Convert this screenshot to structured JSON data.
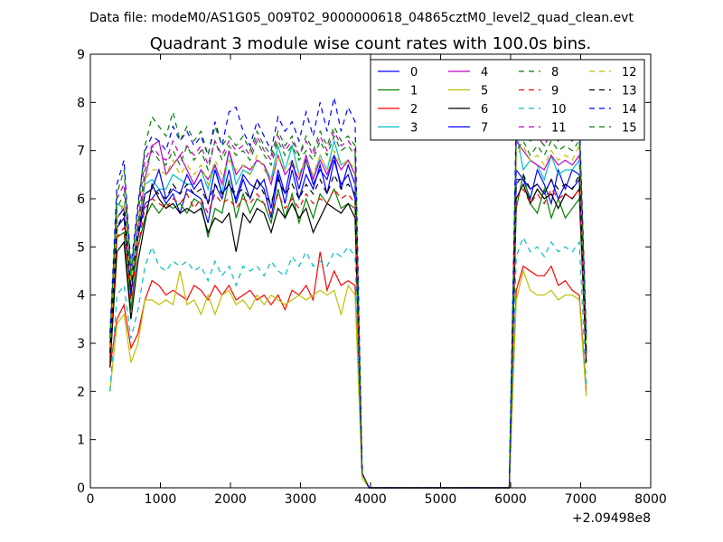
{
  "figure": {
    "suptitle": "Data file: modeM0/AS1G05_009T02_9000000618_04865cztM0_level2_quad_clean.evt",
    "title": "Quadrant 3 module wise count rates with 100.0s bins.",
    "x_offset_label": "+2.09498e8"
  },
  "chart_data": {
    "type": "line",
    "title": "Quadrant 3 module wise count rates with 100.0s bins.",
    "xlabel": "",
    "ylabel": "",
    "xlim": [
      0,
      8000
    ],
    "ylim": [
      0,
      9
    ],
    "x_ticks": [
      0,
      1000,
      2000,
      3000,
      4000,
      5000,
      6000,
      7000,
      8000
    ],
    "y_ticks": [
      0,
      1,
      2,
      3,
      4,
      5,
      6,
      7,
      8,
      9
    ],
    "x_offset": 209498000,
    "grid": false,
    "legend_location": "top-right",
    "legend_columns": 4,
    "x": [
      280,
      380,
      480,
      580,
      680,
      780,
      880,
      980,
      1080,
      1180,
      1280,
      1380,
      1480,
      1580,
      1680,
      1780,
      1880,
      1980,
      2080,
      2180,
      2280,
      2380,
      2480,
      2580,
      2680,
      2780,
      2880,
      2980,
      3080,
      3180,
      3280,
      3380,
      3480,
      3580,
      3680,
      3780,
      3880,
      3980,
      4080,
      4180,
      4280,
      4380,
      4480,
      4580,
      4680,
      4780,
      4880,
      4980,
      5080,
      5180,
      5280,
      5380,
      5480,
      5580,
      5680,
      5780,
      5880,
      5980,
      6080,
      6180,
      6280,
      6380,
      6480,
      6580,
      6680,
      6780,
      6880,
      6980,
      7080
    ],
    "series": [
      {
        "name": "0",
        "color": "#0000ff",
        "dash": "solid",
        "values": [
          2.9,
          5.4,
          5.6,
          4.2,
          5.2,
          5.9,
          6.0,
          6.2,
          5.9,
          6.1,
          5.7,
          6.2,
          6.1,
          6.0,
          5.5,
          6.3,
          6.0,
          6.6,
          5.9,
          6.4,
          6.0,
          6.4,
          6.2,
          5.6,
          6.5,
          5.9,
          6.6,
          6.0,
          6.5,
          6.2,
          6.7,
          6.1,
          6.8,
          6.3,
          6.5,
          6.0,
          0.3,
          0,
          0,
          0,
          0,
          0,
          0,
          0,
          0,
          0,
          0,
          0,
          0,
          0,
          0,
          0,
          0,
          0,
          0,
          0,
          0,
          0,
          6.4,
          6.4,
          6.0,
          6.6,
          6.3,
          5.9,
          6.6,
          6.2,
          6.6,
          6.5,
          2.9
        ]
      },
      {
        "name": "1",
        "color": "#008000",
        "dash": "solid",
        "values": [
          2.6,
          5.2,
          5.3,
          3.7,
          5.0,
          5.6,
          5.9,
          5.7,
          5.9,
          5.8,
          5.9,
          5.7,
          6.0,
          5.9,
          5.2,
          5.8,
          5.7,
          6.4,
          5.6,
          6.1,
          5.7,
          6.0,
          5.9,
          5.5,
          6.2,
          5.6,
          6.1,
          5.5,
          6.0,
          5.6,
          6.1,
          5.9,
          6.2,
          5.8,
          5.9,
          5.8,
          0.3,
          0,
          0,
          0,
          0,
          0,
          0,
          0,
          0,
          0,
          0,
          0,
          0,
          0,
          0,
          0,
          0,
          0,
          0,
          0,
          0,
          0,
          5.8,
          6.5,
          5.9,
          5.7,
          6.2,
          5.6,
          6.0,
          5.6,
          5.8,
          6.0,
          2.6
        ]
      },
      {
        "name": "2",
        "color": "#ff0000",
        "dash": "solid",
        "values": [
          2.5,
          3.5,
          3.8,
          2.9,
          3.2,
          3.9,
          4.3,
          4.2,
          4.0,
          4.1,
          4.0,
          3.9,
          4.2,
          4.1,
          3.9,
          4.2,
          4.0,
          4.2,
          3.9,
          4.0,
          4.1,
          3.9,
          4.0,
          3.8,
          4.0,
          3.7,
          4.1,
          4.0,
          4.2,
          3.9,
          4.9,
          4.1,
          4.5,
          4.2,
          4.3,
          4.2,
          0.3,
          0,
          0,
          0,
          0,
          0,
          0,
          0,
          0,
          0,
          0,
          0,
          0,
          0,
          0,
          0,
          0,
          0,
          0,
          0,
          0,
          0,
          4.1,
          4.6,
          4.5,
          4.4,
          4.4,
          4.6,
          4.2,
          4.3,
          4.1,
          4.0,
          2.0
        ]
      },
      {
        "name": "3",
        "color": "#00bfbf",
        "dash": "solid",
        "values": [
          2.9,
          5.9,
          5.8,
          4.4,
          5.4,
          6.3,
          6.4,
          6.2,
          6.2,
          6.5,
          6.4,
          6.3,
          6.3,
          6.6,
          6.2,
          6.7,
          6.1,
          7.0,
          6.3,
          6.6,
          6.5,
          6.8,
          6.7,
          6.4,
          7.1,
          6.6,
          7.1,
          6.5,
          6.8,
          6.4,
          6.9,
          6.6,
          7.2,
          6.7,
          6.8,
          6.5,
          0.3,
          0,
          0,
          0,
          0,
          0,
          0,
          0,
          0,
          0,
          0,
          0,
          0,
          0,
          0,
          0,
          0,
          0,
          0,
          0,
          0,
          0,
          7.4,
          6.6,
          6.8,
          6.7,
          6.4,
          6.9,
          6.5,
          6.6,
          6.6,
          6.8,
          2.9
        ]
      },
      {
        "name": "4",
        "color": "#bf00bf",
        "dash": "solid",
        "values": [
          2.8,
          5.6,
          5.8,
          4.1,
          5.4,
          6.4,
          7.1,
          7.2,
          6.5,
          6.7,
          6.9,
          6.6,
          6.3,
          6.6,
          6.4,
          6.7,
          6.3,
          7.0,
          6.5,
          6.7,
          6.6,
          6.8,
          6.7,
          6.3,
          6.9,
          6.5,
          6.7,
          6.4,
          6.9,
          6.4,
          6.8,
          6.5,
          6.9,
          6.6,
          6.8,
          6.5,
          0.3,
          0,
          0,
          0,
          0,
          0,
          0,
          0,
          0,
          0,
          0,
          0,
          0,
          0,
          0,
          0,
          0,
          0,
          0,
          0,
          0,
          0,
          7.2,
          7.0,
          6.8,
          6.7,
          6.6,
          6.9,
          6.7,
          6.8,
          6.7,
          6.9,
          2.8
        ]
      },
      {
        "name": "5",
        "color": "#bfbf00",
        "dash": "solid",
        "values": [
          2.0,
          3.4,
          3.6,
          2.6,
          3.0,
          3.9,
          3.9,
          3.8,
          3.9,
          3.8,
          4.5,
          3.8,
          3.9,
          3.6,
          4.0,
          3.6,
          4.0,
          4.1,
          3.8,
          3.9,
          3.7,
          4.0,
          3.8,
          4.0,
          3.9,
          3.8,
          3.9,
          4.0,
          3.9,
          4.0,
          4.1,
          4.0,
          4.1,
          3.6,
          4.2,
          4.0,
          0.2,
          0,
          0,
          0,
          0,
          0,
          0,
          0,
          0,
          0,
          0,
          0,
          0,
          0,
          0,
          0,
          0,
          0,
          0,
          0,
          0,
          0,
          3.9,
          4.5,
          4.1,
          4.0,
          4.0,
          4.1,
          3.9,
          4.0,
          4.0,
          3.9,
          1.9
        ]
      },
      {
        "name": "6",
        "color": "#000000",
        "dash": "solid",
        "values": [
          2.5,
          4.9,
          5.1,
          3.5,
          4.7,
          5.5,
          6.3,
          6.0,
          5.8,
          5.9,
          5.7,
          5.8,
          5.7,
          5.8,
          5.3,
          5.6,
          5.5,
          5.7,
          4.9,
          5.7,
          5.5,
          5.8,
          5.7,
          5.3,
          5.8,
          5.6,
          5.9,
          5.6,
          5.8,
          5.3,
          5.6,
          5.9,
          5.8,
          5.7,
          5.9,
          5.6,
          0.3,
          0,
          0,
          0,
          0,
          0,
          0,
          0,
          0,
          0,
          0,
          0,
          0,
          0,
          0,
          0,
          0,
          0,
          0,
          0,
          0,
          0,
          6.0,
          6.3,
          5.9,
          6.2,
          6.0,
          6.1,
          5.8,
          6.1,
          6.0,
          6.2,
          2.6
        ]
      },
      {
        "name": "7",
        "color": "#0000ff",
        "dash": "solid",
        "values": [
          2.9,
          5.6,
          5.8,
          4.0,
          5.3,
          6.1,
          6.2,
          6.6,
          6.0,
          6.2,
          6.1,
          6.5,
          6.2,
          6.4,
          5.9,
          6.6,
          6.1,
          6.3,
          6.0,
          6.5,
          6.3,
          6.2,
          6.4,
          5.8,
          6.6,
          6.1,
          6.8,
          6.2,
          6.8,
          6.3,
          6.6,
          6.4,
          6.9,
          6.2,
          6.7,
          6.3,
          0.3,
          0,
          0,
          0,
          0,
          0,
          0,
          0,
          0,
          0,
          0,
          0,
          0,
          0,
          0,
          0,
          0,
          0,
          0,
          0,
          0,
          0,
          6.6,
          6.4,
          6.2,
          6.3,
          6.1,
          6.4,
          6.0,
          6.3,
          6.2,
          6.4,
          2.8
        ]
      },
      {
        "name": "8",
        "color": "#008000",
        "dash": "dashed",
        "values": [
          3.0,
          5.8,
          6.1,
          4.3,
          5.5,
          6.6,
          7.0,
          6.8,
          6.7,
          7.0,
          6.7,
          7.1,
          6.8,
          7.0,
          6.6,
          7.2,
          6.8,
          7.1,
          6.9,
          7.0,
          6.8,
          7.2,
          6.9,
          6.7,
          7.2,
          6.9,
          7.1,
          6.8,
          7.0,
          6.8,
          7.2,
          6.9,
          7.3,
          7.0,
          7.1,
          6.9,
          0.3,
          0,
          0,
          0,
          0,
          0,
          0,
          0,
          0,
          0,
          0,
          0,
          0,
          0,
          0,
          0,
          0,
          0,
          0,
          0,
          0,
          0,
          7.0,
          7.2,
          6.9,
          7.1,
          6.9,
          7.2,
          7.0,
          7.1,
          7.0,
          7.2,
          3.0
        ]
      },
      {
        "name": "9",
        "color": "#ff0000",
        "dash": "dashed",
        "values": [
          2.7,
          5.2,
          5.4,
          3.9,
          5.0,
          5.8,
          6.0,
          5.9,
          5.8,
          6.0,
          5.9,
          6.1,
          5.8,
          6.0,
          5.7,
          6.1,
          5.9,
          6.0,
          5.8,
          6.0,
          5.9,
          6.1,
          5.9,
          5.7,
          6.1,
          5.8,
          6.0,
          5.8,
          6.1,
          5.9,
          6.0,
          5.9,
          6.2,
          6.0,
          6.1,
          5.9,
          0.3,
          0,
          0,
          0,
          0,
          0,
          0,
          0,
          0,
          0,
          0,
          0,
          0,
          0,
          0,
          0,
          0,
          0,
          0,
          0,
          0,
          0,
          6.0,
          6.2,
          5.9,
          6.1,
          5.9,
          6.2,
          6.0,
          6.1,
          6.0,
          6.2,
          2.7
        ]
      },
      {
        "name": "10",
        "color": "#00bfbf",
        "dash": "dashed",
        "values": [
          2.0,
          4.0,
          4.2,
          3.1,
          3.7,
          4.6,
          5.0,
          4.6,
          4.5,
          4.7,
          4.6,
          4.7,
          4.5,
          4.6,
          4.3,
          4.7,
          4.4,
          4.6,
          4.2,
          4.6,
          4.5,
          4.6,
          4.4,
          4.7,
          4.5,
          4.4,
          4.8,
          4.6,
          4.9,
          4.6,
          4.7,
          4.6,
          4.9,
          4.8,
          5.0,
          4.8,
          0.3,
          0,
          0,
          0,
          0,
          0,
          0,
          0,
          0,
          0,
          0,
          0,
          0,
          0,
          0,
          0,
          0,
          0,
          0,
          0,
          0,
          0,
          4.8,
          5.2,
          4.9,
          5.0,
          4.8,
          5.1,
          4.9,
          5.0,
          4.9,
          5.1,
          2.1
        ]
      },
      {
        "name": "11",
        "color": "#bf00bf",
        "dash": "dashed",
        "values": [
          3.1,
          6.0,
          6.3,
          4.5,
          5.7,
          6.8,
          7.1,
          6.9,
          6.8,
          7.2,
          6.9,
          7.1,
          6.9,
          7.1,
          6.7,
          7.2,
          6.9,
          7.2,
          7.0,
          7.1,
          6.9,
          7.3,
          7.0,
          6.8,
          7.3,
          7.0,
          7.2,
          6.9,
          7.2,
          6.9,
          7.3,
          7.0,
          7.4,
          7.1,
          7.2,
          7.0,
          0.3,
          0,
          0,
          0,
          0,
          0,
          0,
          0,
          0,
          0,
          0,
          0,
          0,
          0,
          0,
          0,
          0,
          0,
          0,
          0,
          0,
          0,
          7.3,
          7.5,
          7.2,
          7.3,
          7.1,
          7.4,
          7.2,
          7.3,
          7.2,
          7.5,
          3.1
        ]
      },
      {
        "name": "12",
        "color": "#bfbf00",
        "dash": "dashed",
        "values": [
          2.9,
          5.6,
          5.9,
          4.2,
          5.3,
          6.4,
          6.6,
          6.6,
          6.5,
          6.8,
          6.5,
          6.7,
          6.5,
          6.7,
          6.3,
          6.8,
          6.5,
          6.8,
          6.6,
          6.7,
          6.5,
          6.9,
          6.6,
          6.4,
          6.9,
          6.6,
          6.8,
          6.5,
          6.8,
          6.5,
          6.9,
          6.6,
          7.0,
          6.7,
          6.8,
          6.6,
          0.3,
          0,
          0,
          0,
          0,
          0,
          0,
          0,
          0,
          0,
          0,
          0,
          0,
          0,
          0,
          0,
          0,
          0,
          0,
          0,
          0,
          0,
          6.9,
          7.1,
          6.8,
          6.9,
          6.7,
          7.0,
          6.8,
          6.9,
          6.8,
          7.1,
          2.9
        ]
      },
      {
        "name": "13",
        "color": "#000000",
        "dash": "dashed",
        "values": [
          2.8,
          5.4,
          5.7,
          4.1,
          5.2,
          6.1,
          6.2,
          6.1,
          6.0,
          6.3,
          6.1,
          6.3,
          6.1,
          6.2,
          5.9,
          6.3,
          6.1,
          6.3,
          6.1,
          6.2,
          6.0,
          6.4,
          6.1,
          5.9,
          6.4,
          6.1,
          6.3,
          6.0,
          6.3,
          6.1,
          6.4,
          6.1,
          6.5,
          6.2,
          6.3,
          6.1,
          0.3,
          0,
          0,
          0,
          0,
          0,
          0,
          0,
          0,
          0,
          0,
          0,
          0,
          0,
          0,
          0,
          0,
          0,
          0,
          0,
          0,
          0,
          6.3,
          6.5,
          6.2,
          6.3,
          6.1,
          6.4,
          6.2,
          6.3,
          6.2,
          6.5,
          2.8
        ]
      },
      {
        "name": "14",
        "color": "#0000ff",
        "dash": "dashed",
        "values": [
          3.2,
          6.3,
          6.8,
          4.6,
          5.9,
          7.0,
          7.3,
          7.2,
          7.0,
          7.5,
          7.2,
          7.4,
          7.1,
          7.3,
          6.9,
          7.6,
          7.1,
          7.8,
          7.9,
          7.4,
          7.1,
          7.6,
          7.3,
          7.0,
          7.7,
          7.4,
          7.6,
          7.2,
          7.8,
          7.3,
          8.0,
          7.4,
          8.1,
          7.4,
          7.9,
          7.6,
          0.3,
          0,
          0,
          0,
          0,
          0,
          0,
          0,
          0,
          0,
          0,
          0,
          0,
          0,
          0,
          0,
          0,
          0,
          0,
          0,
          0,
          0,
          7.7,
          7.9,
          7.4,
          7.5,
          7.3,
          7.7,
          7.4,
          7.6,
          7.5,
          7.7,
          3.2
        ]
      },
      {
        "name": "15",
        "color": "#008000",
        "dash": "dashed",
        "values": [
          3.1,
          6.1,
          6.6,
          4.5,
          5.8,
          7.1,
          7.7,
          7.5,
          7.3,
          7.8,
          7.2,
          7.5,
          7.2,
          7.4,
          6.9,
          7.5,
          7.1,
          7.3,
          7.1,
          7.3,
          7.0,
          7.4,
          7.1,
          6.9,
          7.4,
          7.1,
          7.3,
          6.9,
          7.3,
          7.0,
          7.4,
          7.1,
          7.5,
          7.2,
          7.3,
          7.1,
          0.3,
          0,
          0,
          0,
          0,
          0,
          0,
          0,
          0,
          0,
          0,
          0,
          0,
          0,
          0,
          0,
          0,
          0,
          0,
          0,
          0,
          0,
          7.3,
          7.5,
          7.2,
          7.3,
          7.1,
          7.5,
          7.2,
          7.4,
          7.2,
          7.5,
          3.1
        ]
      }
    ]
  }
}
